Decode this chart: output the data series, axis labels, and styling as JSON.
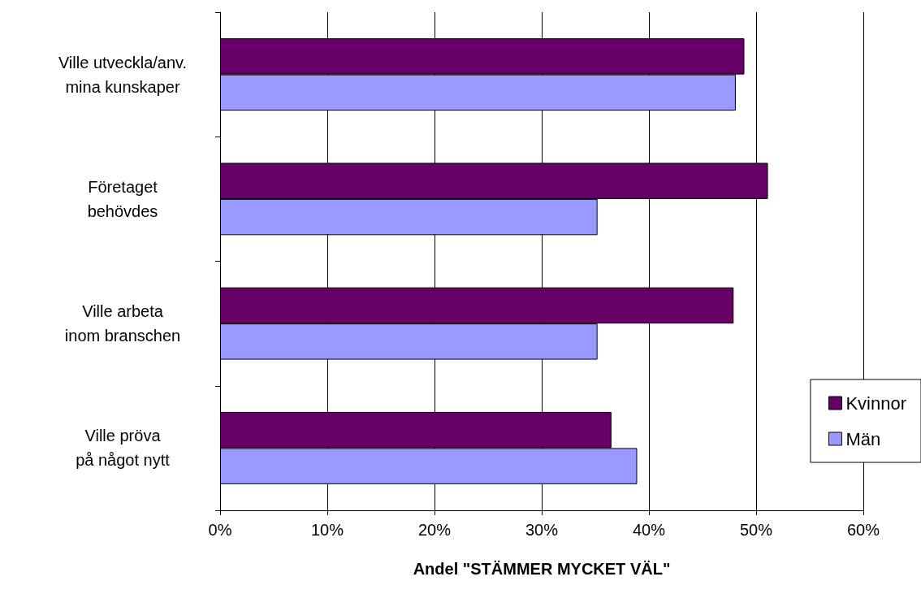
{
  "chart_data": {
    "type": "bar",
    "orientation": "horizontal",
    "xlabel": "Andel \"STÄMMER MYCKET VÄL\"",
    "categories": [
      "Ville utveckla/anv. mina kunskaper",
      "Företaget behövdes",
      "Ville arbeta inom branschen",
      "Ville pröva på något nytt"
    ],
    "series": [
      {
        "name": "Kvinnor",
        "color": "#660066",
        "values": [
          48.9,
          51.1,
          47.9,
          36.5
        ]
      },
      {
        "name": "Män",
        "color": "#9999ff",
        "values": [
          48.1,
          35.2,
          35.2,
          38.9
        ]
      }
    ],
    "xlim": [
      0,
      60
    ],
    "xticks": [
      {
        "value": 0,
        "label": "0%"
      },
      {
        "value": 10,
        "label": "10%"
      },
      {
        "value": 20,
        "label": "20%"
      },
      {
        "value": 30,
        "label": "30%"
      },
      {
        "value": 40,
        "label": "40%"
      },
      {
        "value": 50,
        "label": "50%"
      },
      {
        "value": 60,
        "label": "60%"
      }
    ],
    "grid": "x",
    "legend": "right"
  }
}
